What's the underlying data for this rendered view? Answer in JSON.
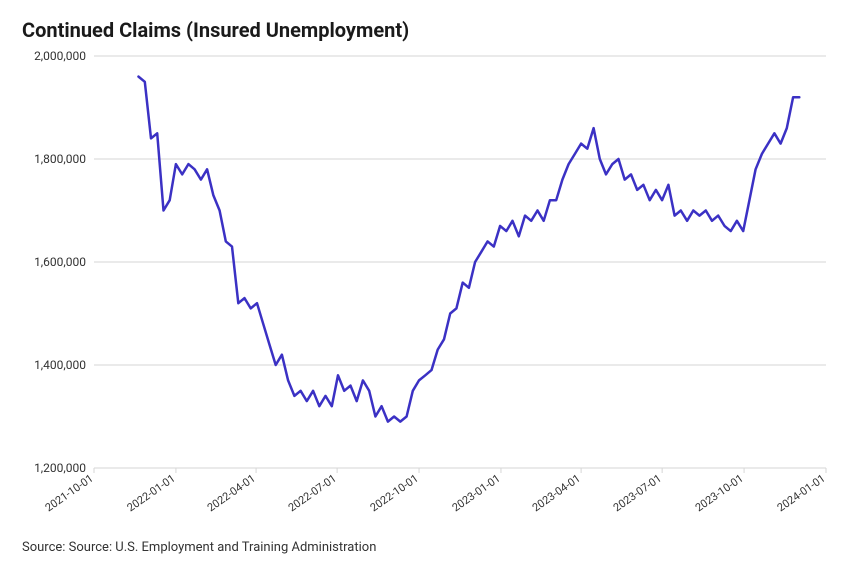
{
  "title": "Continued Claims (Insured Unemployment)",
  "source": "Source: Source: U.S. Employment and Training Administration",
  "chart": {
    "type": "line",
    "background_color": "#ffffff",
    "grid_color": "#d6d6d6",
    "line_color": "#3b31c4",
    "line_width": 2.5,
    "title_fontsize": 20,
    "label_fontsize": 12,
    "ylim": [
      1200000,
      2000000
    ],
    "yticks": [
      1200000,
      1400000,
      1600000,
      1800000,
      2000000
    ],
    "ytick_labels": [
      "1,200,000",
      "1,400,000",
      "1,600,000",
      "1,800,000",
      "2,000,000"
    ],
    "xlim": [
      "2021-10-01",
      "2024-01-01"
    ],
    "xticks": [
      "2021-10-01",
      "2022-01-01",
      "2022-04-01",
      "2022-07-01",
      "2022-10-01",
      "2023-01-01",
      "2023-04-01",
      "2023-07-01",
      "2023-10-01",
      "2024-01-01"
    ],
    "xtick_labels": [
      "2021-10-01",
      "2022-01-01",
      "2022-04-01",
      "2022-07-01",
      "2022-10-01",
      "2023-01-01",
      "2023-04-01",
      "2023-07-01",
      "2023-10-01",
      "2024-01-01"
    ],
    "xtick_rotation": -35,
    "series": [
      {
        "name": "Continued Claims",
        "color": "#3b31c4",
        "x": [
          "2021-11-20",
          "2021-11-27",
          "2021-12-04",
          "2021-12-11",
          "2021-12-18",
          "2021-12-25",
          "2022-01-01",
          "2022-01-08",
          "2022-01-15",
          "2022-01-22",
          "2022-01-29",
          "2022-02-05",
          "2022-02-12",
          "2022-02-19",
          "2022-02-26",
          "2022-03-05",
          "2022-03-12",
          "2022-03-19",
          "2022-03-26",
          "2022-04-02",
          "2022-04-09",
          "2022-04-16",
          "2022-04-23",
          "2022-04-30",
          "2022-05-07",
          "2022-05-14",
          "2022-05-21",
          "2022-05-28",
          "2022-06-04",
          "2022-06-11",
          "2022-06-18",
          "2022-06-25",
          "2022-07-02",
          "2022-07-09",
          "2022-07-16",
          "2022-07-23",
          "2022-07-30",
          "2022-08-06",
          "2022-08-13",
          "2022-08-20",
          "2022-08-27",
          "2022-09-03",
          "2022-09-10",
          "2022-09-17",
          "2022-09-24",
          "2022-10-01",
          "2022-10-08",
          "2022-10-15",
          "2022-10-22",
          "2022-10-29",
          "2022-11-05",
          "2022-11-12",
          "2022-11-19",
          "2022-11-26",
          "2022-12-03",
          "2022-12-10",
          "2022-12-17",
          "2022-12-24",
          "2022-12-31",
          "2023-01-07",
          "2023-01-14",
          "2023-01-21",
          "2023-01-28",
          "2023-02-04",
          "2023-02-11",
          "2023-02-18",
          "2023-02-25",
          "2023-03-04",
          "2023-03-11",
          "2023-03-18",
          "2023-03-25",
          "2023-04-01",
          "2023-04-08",
          "2023-04-15",
          "2023-04-22",
          "2023-04-29",
          "2023-05-06",
          "2023-05-13",
          "2023-05-20",
          "2023-05-27",
          "2023-06-03",
          "2023-06-10",
          "2023-06-17",
          "2023-06-24",
          "2023-07-01",
          "2023-07-08",
          "2023-07-15",
          "2023-07-22",
          "2023-07-29",
          "2023-08-05",
          "2023-08-12",
          "2023-08-19",
          "2023-08-26",
          "2023-09-02",
          "2023-09-09",
          "2023-09-16",
          "2023-09-23",
          "2023-09-30",
          "2023-10-07",
          "2023-10-14",
          "2023-10-21",
          "2023-10-28",
          "2023-11-04",
          "2023-11-11",
          "2023-11-18",
          "2023-11-25",
          "2023-12-02"
        ],
        "y": [
          1960000,
          1950000,
          1840000,
          1850000,
          1700000,
          1720000,
          1790000,
          1770000,
          1790000,
          1780000,
          1760000,
          1780000,
          1730000,
          1700000,
          1640000,
          1630000,
          1520000,
          1530000,
          1510000,
          1520000,
          1480000,
          1440000,
          1400000,
          1420000,
          1370000,
          1340000,
          1350000,
          1330000,
          1350000,
          1320000,
          1340000,
          1320000,
          1380000,
          1350000,
          1360000,
          1330000,
          1370000,
          1350000,
          1300000,
          1320000,
          1290000,
          1300000,
          1290000,
          1300000,
          1350000,
          1370000,
          1380000,
          1390000,
          1430000,
          1450000,
          1500000,
          1510000,
          1560000,
          1550000,
          1600000,
          1620000,
          1640000,
          1630000,
          1670000,
          1660000,
          1680000,
          1650000,
          1690000,
          1680000,
          1700000,
          1680000,
          1720000,
          1720000,
          1760000,
          1790000,
          1810000,
          1830000,
          1820000,
          1860000,
          1800000,
          1770000,
          1790000,
          1800000,
          1760000,
          1770000,
          1740000,
          1750000,
          1720000,
          1740000,
          1720000,
          1750000,
          1690000,
          1700000,
          1680000,
          1700000,
          1690000,
          1700000,
          1680000,
          1690000,
          1670000,
          1660000,
          1680000,
          1660000,
          1720000,
          1780000,
          1810000,
          1830000,
          1850000,
          1830000,
          1860000,
          1920000,
          1920000
        ]
      }
    ]
  }
}
